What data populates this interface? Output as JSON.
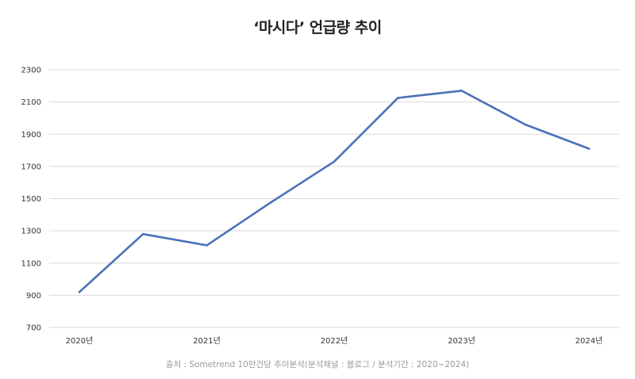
{
  "chart_data": {
    "type": "line",
    "title": "‘마시다’ 언급량 추이",
    "xlabel": "",
    "ylabel": "",
    "grid": true,
    "legend": "none",
    "ylim": [
      700,
      2300
    ],
    "yticks": [
      700,
      900,
      1100,
      1300,
      1500,
      1700,
      1900,
      2100,
      2300
    ],
    "xtick_labels": [
      "2020년",
      "2021년",
      "2022년",
      "2023년",
      "2024년"
    ],
    "series": [
      {
        "name": "언급량",
        "color": "#4a72b8",
        "points": [
          {
            "x": 2020.0,
            "y": 920
          },
          {
            "x": 2020.5,
            "y": 1280
          },
          {
            "x": 2021.0,
            "y": 1210
          },
          {
            "x": 2021.5,
            "y": 1475
          },
          {
            "x": 2022.0,
            "y": 1730
          },
          {
            "x": 2022.5,
            "y": 2125
          },
          {
            "x": 2023.0,
            "y": 2170
          },
          {
            "x": 2023.5,
            "y": 1960
          },
          {
            "x": 2024.0,
            "y": 1810
          }
        ]
      }
    ],
    "source": "출처 : Sometrend 10만건당 추이분석(분석채널 : 블로그 / 분석기간 : 2020~2024)"
  },
  "colors": {
    "line": "#4a72b8",
    "grid": "#d9d9d9",
    "text": "#333333",
    "source_text": "#9a9a9a"
  }
}
